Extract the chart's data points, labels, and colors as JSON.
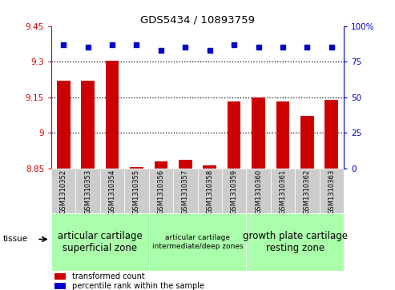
{
  "title": "GDS5434 / 10893759",
  "samples": [
    "GSM1310352",
    "GSM1310353",
    "GSM1310354",
    "GSM1310355",
    "GSM1310356",
    "GSM1310357",
    "GSM1310358",
    "GSM1310359",
    "GSM1310360",
    "GSM1310361",
    "GSM1310362",
    "GSM1310363"
  ],
  "bar_values": [
    9.22,
    9.22,
    9.305,
    8.855,
    8.88,
    8.887,
    8.862,
    9.132,
    9.148,
    9.132,
    9.07,
    9.14
  ],
  "percentile_values": [
    87,
    85,
    87,
    87,
    83,
    85,
    83,
    87,
    85,
    85,
    85,
    85
  ],
  "ylim_left": [
    8.85,
    9.45
  ],
  "ylim_right": [
    0,
    100
  ],
  "yticks_left": [
    8.85,
    9.0,
    9.15,
    9.3,
    9.45
  ],
  "yticks_right": [
    0,
    25,
    50,
    75,
    100
  ],
  "ytick_labels_left": [
    "8.85",
    "9",
    "9.15",
    "9.3",
    "9.45"
  ],
  "ytick_labels_right": [
    "0",
    "25",
    "50",
    "75",
    "100%"
  ],
  "bar_color": "#cc0000",
  "dot_color": "#0000cc",
  "groups": [
    {
      "label": "articular cartilage\nsuperficial zone",
      "start": 0,
      "end": 3,
      "color": "#aaffaa",
      "fontsize": 8.5
    },
    {
      "label": "articular cartilage\nintermediate/deep zones",
      "start": 4,
      "end": 7,
      "color": "#aaffaa",
      "fontsize": 6.5
    },
    {
      "label": "growth plate cartilage\nresting zone",
      "start": 8,
      "end": 11,
      "color": "#aaffaa",
      "fontsize": 8.5
    }
  ],
  "tissue_label": "tissue",
  "legend_items": [
    {
      "color": "#cc0000",
      "label": "transformed count"
    },
    {
      "color": "#0000cc",
      "label": "percentile rank within the sample"
    }
  ],
  "bg_color": "#ffffff",
  "bar_bottom": 8.85,
  "sample_bg_color": "#cccccc",
  "grid_linestyle": "dotted"
}
